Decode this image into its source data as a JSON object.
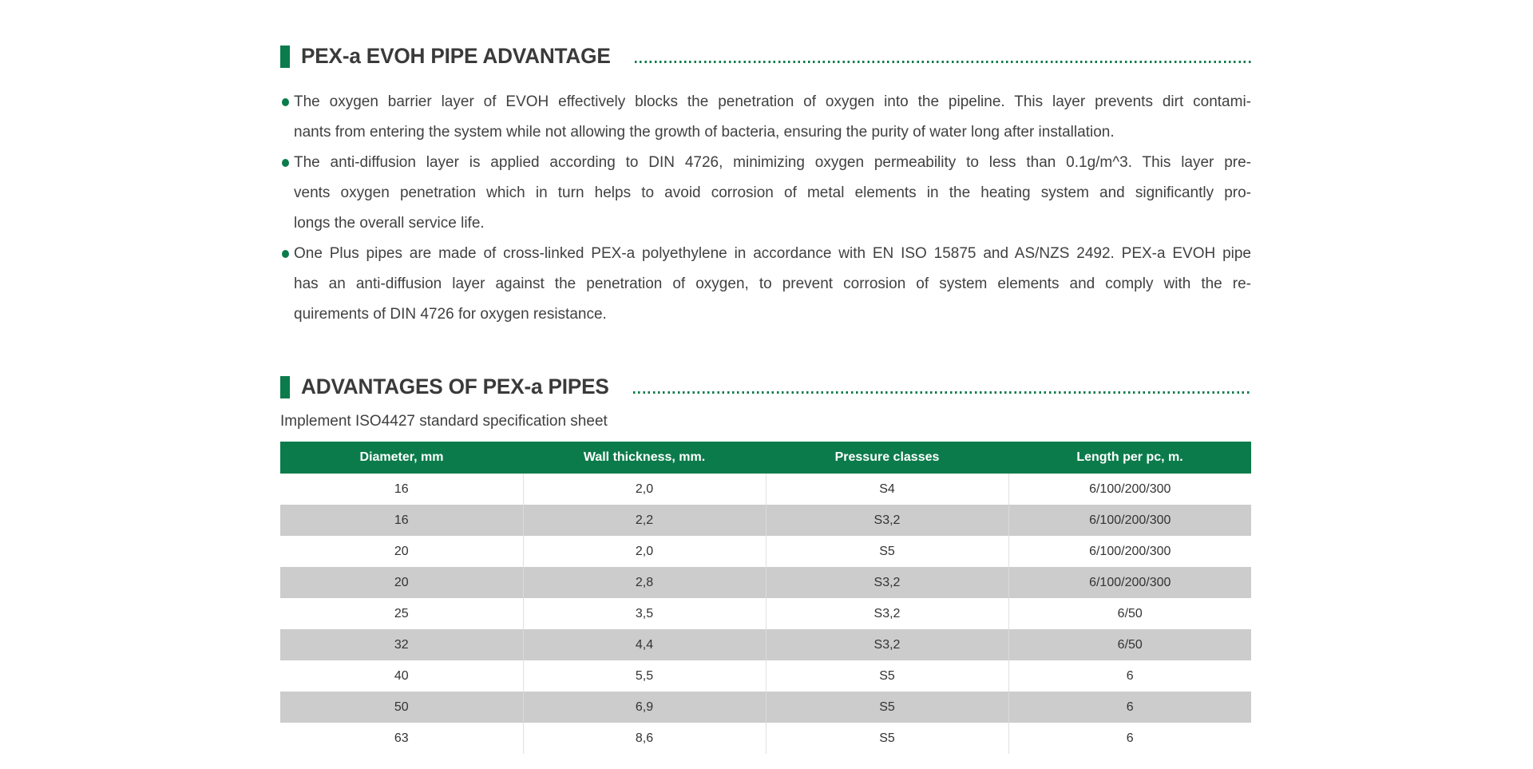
{
  "theme": {
    "green": "#0c7b4b",
    "row_alt_gray": "#cccccc",
    "header_text_color": "#ffffff",
    "body_text_color": "#414141"
  },
  "section1": {
    "title": "PEX-a EVOH PIPE ADVANTAGE",
    "bullets": [
      {
        "lines": [
          "The oxygen barrier layer of EVOH effectively blocks the penetration of oxygen into the pipeline. This layer prevents dirt contami-",
          "nants from entering the system while not allowing the growth of bacteria, ensuring the purity of water long after installation."
        ]
      },
      {
        "lines": [
          "The anti-diffusion layer is applied according to DIN 4726, minimizing oxygen permeability to less than 0.1g/m^3. This layer pre-",
          "vents oxygen penetration which in turn helps to avoid corrosion of metal elements in the heating system and significantly pro-",
          "longs the overall service life."
        ]
      },
      {
        "lines": [
          "One Plus pipes are made of cross-linked PEX-a polyethylene in accordance with EN ISO 15875 and AS/NZS 2492. PEX-a EVOH pipe",
          "has an anti-diffusion layer against the penetration of oxygen, to prevent corrosion of system elements and comply with the re-",
          "quirements of DIN 4726 for oxygen resistance."
        ]
      }
    ]
  },
  "section2": {
    "title": "ADVANTAGES OF PEX-a PIPES",
    "subtitle": "Implement ISO4427 standard specification sheet",
    "table": {
      "headers": [
        "Diameter, mm",
        "Wall thickness, mm.",
        "Pressure classes",
        "Length per pc, m."
      ],
      "rows": [
        [
          "16",
          "2,0",
          "S4",
          "6/100/200/300"
        ],
        [
          "16",
          "2,2",
          "S3,2",
          "6/100/200/300"
        ],
        [
          "20",
          "2,0",
          "S5",
          "6/100/200/300"
        ],
        [
          "20",
          "2,8",
          "S3,2",
          "6/100/200/300"
        ],
        [
          "25",
          "3,5",
          "S3,2",
          "6/50"
        ],
        [
          "32",
          "4,4",
          "S3,2",
          "6/50"
        ],
        [
          "40",
          "5,5",
          "S5",
          "6"
        ],
        [
          "50",
          "6,9",
          "S5",
          "6"
        ],
        [
          "63",
          "8,6",
          "S5",
          "6"
        ]
      ]
    }
  }
}
